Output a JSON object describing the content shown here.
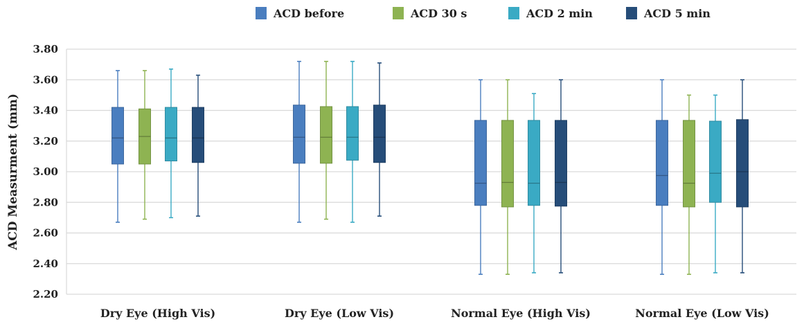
{
  "chart_data": {
    "type": "boxplot",
    "ylabel": "ACD Measurment (mm)",
    "ylim": [
      2.2,
      3.8
    ],
    "yticks": [
      "2.20",
      "2.40",
      "2.60",
      "2.80",
      "3.00",
      "3.20",
      "3.40",
      "3.60",
      "3.80"
    ],
    "grid": true,
    "legend_position": "top",
    "categories": [
      "Dry Eye (High Vis)",
      "Dry Eye (Low Vis)",
      "Normal Eye (High Vis)",
      "Normal Eye (Low Vis)"
    ],
    "series": [
      {
        "name": "ACD before",
        "color": "#4a7ebf",
        "boxes": [
          {
            "min": 2.67,
            "q1": 3.05,
            "median": 3.22,
            "q3": 3.42,
            "max": 3.66
          },
          {
            "min": 2.67,
            "q1": 3.055,
            "median": 3.225,
            "q3": 3.435,
            "max": 3.72
          },
          {
            "min": 2.33,
            "q1": 2.78,
            "median": 2.925,
            "q3": 3.335,
            "max": 3.6
          },
          {
            "min": 2.33,
            "q1": 2.78,
            "median": 2.975,
            "q3": 3.335,
            "max": 3.6
          }
        ]
      },
      {
        "name": "ACD 30 s",
        "color": "#8eb352",
        "boxes": [
          {
            "min": 2.69,
            "q1": 3.05,
            "median": 3.23,
            "q3": 3.41,
            "max": 3.66
          },
          {
            "min": 2.69,
            "q1": 3.055,
            "median": 3.225,
            "q3": 3.425,
            "max": 3.72
          },
          {
            "min": 2.33,
            "q1": 2.77,
            "median": 2.93,
            "q3": 3.335,
            "max": 3.6
          },
          {
            "min": 2.33,
            "q1": 2.77,
            "median": 2.925,
            "q3": 3.335,
            "max": 3.5
          }
        ]
      },
      {
        "name": "ACD 2 min",
        "color": "#3aaac4",
        "boxes": [
          {
            "min": 2.7,
            "q1": 3.07,
            "median": 3.22,
            "q3": 3.42,
            "max": 3.67
          },
          {
            "min": 2.67,
            "q1": 3.075,
            "median": 3.225,
            "q3": 3.425,
            "max": 3.72
          },
          {
            "min": 2.34,
            "q1": 2.78,
            "median": 2.925,
            "q3": 3.335,
            "max": 3.51
          },
          {
            "min": 2.34,
            "q1": 2.8,
            "median": 2.99,
            "q3": 3.33,
            "max": 3.5
          }
        ]
      },
      {
        "name": "ACD 5 min",
        "color": "#264d79",
        "boxes": [
          {
            "min": 2.71,
            "q1": 3.06,
            "median": 3.22,
            "q3": 3.42,
            "max": 3.63
          },
          {
            "min": 2.71,
            "q1": 3.06,
            "median": 3.225,
            "q3": 3.435,
            "max": 3.71
          },
          {
            "min": 2.34,
            "q1": 2.775,
            "median": 2.93,
            "q3": 3.335,
            "max": 3.6
          },
          {
            "min": 2.34,
            "q1": 2.77,
            "median": 3.0,
            "q3": 3.34,
            "max": 3.6
          }
        ]
      }
    ]
  }
}
